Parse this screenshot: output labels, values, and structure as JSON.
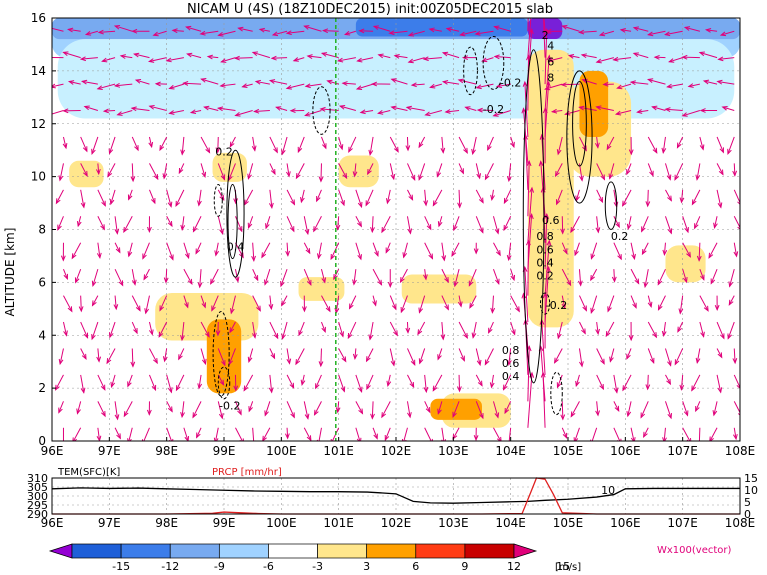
{
  "title": "NICAM U (4S) (18Z10DEC2015) init:00Z05DEC2015 slab",
  "chart_data": [
    {
      "type": "heatmap",
      "title": "",
      "xlabel": "",
      "ylabel": "ALTITUDE [km]",
      "x_ticks": [
        "96E",
        "97E",
        "98E",
        "99E",
        "100E",
        "101E",
        "102E",
        "103E",
        "104E",
        "105E",
        "106E",
        "107E",
        "108E"
      ],
      "y_ticks": [
        "0",
        "2",
        "4",
        "6",
        "8",
        "10",
        "12",
        "14",
        "16"
      ],
      "xlim": [
        96,
        108
      ],
      "ylim": [
        0,
        16
      ],
      "grid": true,
      "marker_line_lon": 100.95,
      "shading_fields": [
        {
          "lon": [
            96,
            108
          ],
          "alt": [
            14.5,
            16
          ],
          "level": -6,
          "color": "#a0d2ff"
        },
        {
          "lon": [
            96,
            108
          ],
          "alt": [
            15.2,
            16
          ],
          "level": -9,
          "color": "#78aaf0"
        },
        {
          "lon": [
            101.3,
            104.3
          ],
          "alt": [
            15.3,
            16
          ],
          "level": -12,
          "color": "#3c7dea"
        },
        {
          "lon": [
            104.3,
            104.9
          ],
          "alt": [
            15.2,
            16
          ],
          "level": -15,
          "color": "#7820d8"
        },
        {
          "lon": [
            96.1,
            107.9
          ],
          "alt": [
            12.2,
            15.2
          ],
          "level": -3,
          "color": "#c8f0ff"
        },
        {
          "lon": [
            96.3,
            96.9
          ],
          "alt": [
            9.6,
            10.6
          ],
          "level": 3,
          "color": "#ffe68c"
        },
        {
          "lon": [
            98.8,
            99.4
          ],
          "alt": [
            9.8,
            10.9
          ],
          "level": 3,
          "color": "#ffe68c"
        },
        {
          "lon": [
            101.0,
            101.7
          ],
          "alt": [
            9.6,
            10.8
          ],
          "level": 3,
          "color": "#ffe68c"
        },
        {
          "lon": [
            105.0,
            106.1
          ],
          "alt": [
            10.0,
            13.6
          ],
          "level": 3,
          "color": "#ffe68c"
        },
        {
          "lon": [
            97.8,
            99.6
          ],
          "alt": [
            3.8,
            5.6
          ],
          "level": 3,
          "color": "#ffe68c"
        },
        {
          "lon": [
            98.7,
            99.3
          ],
          "alt": [
            1.8,
            4.6
          ],
          "level": 6,
          "color": "#ffa000"
        },
        {
          "lon": [
            100.3,
            101.1
          ],
          "alt": [
            5.3,
            6.2
          ],
          "level": 3,
          "color": "#ffe68c"
        },
        {
          "lon": [
            102.1,
            103.4
          ],
          "alt": [
            5.2,
            6.3
          ],
          "level": 3,
          "color": "#ffe68c"
        },
        {
          "lon": [
            102.8,
            104.0
          ],
          "alt": [
            0.5,
            1.8
          ],
          "level": 3,
          "color": "#ffe68c"
        },
        {
          "lon": [
            102.6,
            103.5
          ],
          "alt": [
            0.8,
            1.6
          ],
          "level": 6,
          "color": "#ffa000"
        },
        {
          "lon": [
            106.7,
            107.4
          ],
          "alt": [
            6.0,
            7.4
          ],
          "level": 3,
          "color": "#ffe68c"
        },
        {
          "lon": [
            104.3,
            105.1
          ],
          "alt": [
            4.3,
            14.8
          ],
          "level": 3,
          "color": "#ffe68c"
        },
        {
          "lon": [
            105.2,
            105.7
          ],
          "alt": [
            11.5,
            14.0
          ],
          "level": 6,
          "color": "#ffa000"
        }
      ],
      "contour_labels": [
        {
          "text": "0.2",
          "lon": 99.0,
          "alt": 10.8
        },
        {
          "text": "0.4",
          "lon": 99.2,
          "alt": 7.2
        },
        {
          "text": "-0.2",
          "lon": 99.1,
          "alt": 1.2
        },
        {
          "text": "-0.2",
          "lon": 104.0,
          "alt": 13.4
        },
        {
          "text": "-0.2",
          "lon": 103.7,
          "alt": 12.4
        },
        {
          "text": "2",
          "lon": 104.6,
          "alt": 15.2
        },
        {
          "text": "4",
          "lon": 104.7,
          "alt": 14.8
        },
        {
          "text": "6",
          "lon": 104.7,
          "alt": 14.2
        },
        {
          "text": "8",
          "lon": 104.7,
          "alt": 13.6
        },
        {
          "text": "0.2",
          "lon": 105.9,
          "alt": 7.6
        },
        {
          "text": "0.6",
          "lon": 104.7,
          "alt": 8.2
        },
        {
          "text": "0.8",
          "lon": 104.6,
          "alt": 7.6
        },
        {
          "text": "0.6",
          "lon": 104.6,
          "alt": 7.1
        },
        {
          "text": "0.4",
          "lon": 104.6,
          "alt": 6.6
        },
        {
          "text": "0.2",
          "lon": 104.6,
          "alt": 6.1
        },
        {
          "text": "-0.2",
          "lon": 104.8,
          "alt": 5.0
        },
        {
          "text": "0.8",
          "lon": 104.0,
          "alt": 3.3
        },
        {
          "text": "0.6",
          "lon": 104.0,
          "alt": 2.8
        },
        {
          "text": "0.4",
          "lon": 104.0,
          "alt": 2.3
        }
      ],
      "contours": [
        {
          "lon": 99.2,
          "alt_center": 8.6,
          "lon_halfwidth": 0.15,
          "alt_halfheight": 2.4,
          "dashed": false
        },
        {
          "lon": 99.15,
          "alt_center": 8.3,
          "lon_halfwidth": 0.08,
          "alt_halfheight": 1.4,
          "dashed": false
        },
        {
          "lon": 98.9,
          "alt_center": 9.1,
          "lon_halfwidth": 0.07,
          "alt_halfheight": 0.6,
          "dashed": true
        },
        {
          "lon": 98.95,
          "alt_center": 3.3,
          "lon_halfwidth": 0.14,
          "alt_halfheight": 1.6,
          "dashed": true
        },
        {
          "lon": 99.0,
          "alt_center": 2.2,
          "lon_halfwidth": 0.1,
          "alt_halfheight": 0.6,
          "dashed": true
        },
        {
          "lon": 100.7,
          "alt_center": 12.5,
          "lon_halfwidth": 0.15,
          "alt_halfheight": 0.9,
          "dashed": true
        },
        {
          "lon": 103.3,
          "alt_center": 14.0,
          "lon_halfwidth": 0.12,
          "alt_halfheight": 0.9,
          "dashed": true
        },
        {
          "lon": 103.7,
          "alt_center": 14.3,
          "lon_halfwidth": 0.18,
          "alt_halfheight": 1.0,
          "dashed": true
        },
        {
          "lon": 104.4,
          "alt_center": 8.5,
          "lon_halfwidth": 0.18,
          "alt_halfheight": 6.3,
          "dashed": false
        },
        {
          "lon": 105.2,
          "alt_center": 11.5,
          "lon_halfwidth": 0.22,
          "alt_halfheight": 2.5,
          "dashed": false
        },
        {
          "lon": 105.2,
          "alt_center": 12.0,
          "lon_halfwidth": 0.12,
          "alt_halfheight": 1.6,
          "dashed": false
        },
        {
          "lon": 105.75,
          "alt_center": 8.9,
          "lon_halfwidth": 0.1,
          "alt_halfheight": 0.9,
          "dashed": false
        },
        {
          "lon": 104.8,
          "alt_center": 1.8,
          "lon_halfwidth": 0.1,
          "alt_halfheight": 0.8,
          "dashed": true
        },
        {
          "lon": 104.6,
          "alt_center": 5.2,
          "lon_halfwidth": 0.08,
          "alt_halfheight": 0.4,
          "dashed": true
        }
      ],
      "vectors": {
        "legend": "Wx100(vector)",
        "color": "#e0007a",
        "columns_lon": [
          96.2,
          96.5,
          96.8,
          97.1,
          97.4,
          97.7,
          98.0,
          98.3,
          98.6,
          98.9,
          99.2,
          99.5,
          99.8,
          100.1,
          100.4,
          100.7,
          101.0,
          101.3,
          101.6,
          101.9,
          102.2,
          102.5,
          102.8,
          103.1,
          103.4,
          103.7,
          104.0,
          104.3,
          104.6,
          104.9,
          105.2,
          105.5,
          105.8,
          106.1,
          106.4,
          106.7,
          107.0,
          107.3,
          107.6,
          107.9
        ],
        "rows_alt": [
          0.5,
          1.5,
          2.5,
          3.5,
          4.5,
          5.5,
          6.5,
          7.5,
          8.5,
          9.5,
          10.5,
          11.5,
          12.5,
          13.5,
          14.5,
          15.5
        ]
      }
    },
    {
      "type": "line",
      "title": "",
      "xlim": [
        96,
        108
      ],
      "x_ticks": [
        "96E",
        "97E",
        "98E",
        "99E",
        "100E",
        "101E",
        "102E",
        "103E",
        "104E",
        "105E",
        "106E",
        "107E",
        "108E"
      ],
      "left_axis": {
        "label": "TEM(SFC)[K]",
        "ticks": [
          "290",
          "295",
          "300",
          "305",
          "310"
        ],
        "range": [
          290,
          310
        ]
      },
      "right_axis": {
        "label": "PRCP [mm/hr]",
        "ticks": [
          "0",
          "5",
          "10",
          "15"
        ],
        "range": [
          0,
          15
        ]
      },
      "annotation": {
        "text": "10",
        "lon": 105.7,
        "value": 10
      },
      "series": [
        {
          "name": "TEM(SFC)[K]",
          "color": "#000000",
          "x": [
            96.0,
            96.5,
            97.0,
            97.5,
            98.0,
            98.5,
            99.0,
            99.5,
            100.0,
            100.5,
            101.0,
            101.5,
            102.0,
            102.3,
            102.6,
            103.0,
            103.5,
            104.0,
            104.3,
            104.6,
            105.0,
            105.5,
            105.8,
            106.0,
            106.5,
            107.0,
            107.5,
            108.0
          ],
          "y": [
            304,
            304.5,
            304.2,
            304.4,
            304.0,
            303.6,
            303.2,
            302.8,
            302.6,
            302.4,
            302.4,
            302.2,
            301.2,
            297.0,
            296.2,
            296.0,
            296.4,
            296.8,
            297.0,
            297.6,
            298.2,
            299.4,
            300.8,
            304.0,
            304.2,
            304.2,
            304.2,
            304.2
          ]
        },
        {
          "name": "PRCP [mm/hr]",
          "color": "#e02020",
          "x": [
            96.0,
            98.0,
            98.8,
            99.0,
            99.3,
            99.6,
            100.0,
            102.0,
            103.5,
            104.2,
            104.35,
            104.45,
            104.6,
            104.75,
            104.9,
            105.5,
            106.0,
            108.0
          ],
          "y": [
            0,
            0,
            0.3,
            0.8,
            0.5,
            0.2,
            0,
            0,
            0,
            0.2,
            9.0,
            15.0,
            14.5,
            8.0,
            0.5,
            0,
            0,
            0
          ]
        }
      ]
    }
  ],
  "colorbar": {
    "levels": [
      "-15",
      "-12",
      "-9",
      "-6",
      "-3",
      "3",
      "6",
      "9",
      "12",
      "15"
    ],
    "colors": [
      "#9400d3",
      "#1e5fd8",
      "#3c7dea",
      "#78aaf0",
      "#a0d2ff",
      "#ffffff",
      "#ffe68c",
      "#ffa000",
      "#ff3c14",
      "#c80000",
      "#e0007a"
    ],
    "unit": "[m/s]"
  }
}
